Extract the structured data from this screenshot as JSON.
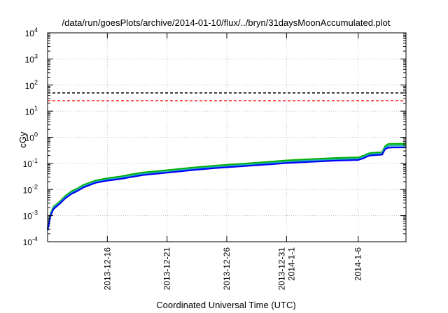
{
  "chart_data": {
    "type": "line",
    "title": "/data/run/goesPlots/archive/2014-01-10/flux/../bryn/31daysMoonAccumulated.plot",
    "xlabel": "Coordinated Universal Time (UTC)",
    "ylabel": "cGy",
    "yscale": "log",
    "ylim": [
      0.0001,
      10000
    ],
    "xlim": [
      "2013-12-11",
      "2014-01-10"
    ],
    "grid": true,
    "legend": "none",
    "y_ticks": [
      {
        "base": "10",
        "exp": "-4"
      },
      {
        "base": "10",
        "exp": "-3"
      },
      {
        "base": "10",
        "exp": "-2"
      },
      {
        "base": "10",
        "exp": "-1"
      },
      {
        "base": "10",
        "exp": "0"
      },
      {
        "base": "10",
        "exp": "1"
      },
      {
        "base": "10",
        "exp": "2"
      },
      {
        "base": "10",
        "exp": "3"
      },
      {
        "base": "10",
        "exp": "4"
      }
    ],
    "x_ticks": [
      {
        "date": "2013-12-16",
        "lines": [
          "2013-12-16"
        ]
      },
      {
        "date": "2013-12-21",
        "lines": [
          "2013-12-21"
        ]
      },
      {
        "date": "2013-12-26",
        "lines": [
          "2013-12-26"
        ]
      },
      {
        "date": "2013-12-31",
        "lines": [
          "2013-12-31",
          "2014-1-1"
        ]
      },
      {
        "date": "2014-01-06",
        "lines": [
          "2014-1-6"
        ]
      }
    ],
    "reference_lines": [
      {
        "y": 50,
        "color": "#000000",
        "style": "dashed"
      },
      {
        "y": 25,
        "color": "#ff0000",
        "style": "dashed"
      }
    ],
    "series": [
      {
        "color": "#00b000",
        "x": [
          "2013-12-11",
          "2013-12-11 06:00",
          "2013-12-11 12:00",
          "2013-12-12",
          "2013-12-12 12:00",
          "2013-12-13",
          "2013-12-13 12:00",
          "2013-12-14",
          "2013-12-15",
          "2013-12-16",
          "2013-12-17",
          "2013-12-18",
          "2013-12-19",
          "2013-12-21",
          "2013-12-23",
          "2013-12-25",
          "2013-12-27",
          "2013-12-29",
          "2013-12-31",
          "2014-01-02",
          "2014-01-04",
          "2014-01-06",
          "2014-01-06 12:00",
          "2014-01-06 18:00",
          "2014-01-07",
          "2014-01-07 12:00",
          "2014-01-08",
          "2014-01-08 06:00",
          "2014-01-08 12:00",
          "2014-01-09",
          "2014-01-10"
        ],
        "y": [
          0.00035,
          0.0012,
          0.0022,
          0.0034,
          0.0058,
          0.0085,
          0.011,
          0.015,
          0.022,
          0.027,
          0.031,
          0.038,
          0.045,
          0.055,
          0.068,
          0.082,
          0.095,
          0.11,
          0.13,
          0.145,
          0.16,
          0.17,
          0.2,
          0.23,
          0.25,
          0.26,
          0.27,
          0.45,
          0.55,
          0.56,
          0.56
        ]
      },
      {
        "color": "#20b0b0",
        "x": [
          "2013-12-11",
          "2013-12-11 06:00",
          "2013-12-11 12:00",
          "2013-12-12",
          "2013-12-12 12:00",
          "2013-12-13",
          "2013-12-13 12:00",
          "2013-12-14",
          "2013-12-15",
          "2013-12-16",
          "2013-12-17",
          "2013-12-18",
          "2013-12-19",
          "2013-12-21",
          "2013-12-23",
          "2013-12-25",
          "2013-12-27",
          "2013-12-29",
          "2013-12-31",
          "2014-01-02",
          "2014-01-04",
          "2014-01-06",
          "2014-01-06 12:00",
          "2014-01-06 18:00",
          "2014-01-07",
          "2014-01-07 12:00",
          "2014-01-08",
          "2014-01-08 06:00",
          "2014-01-08 12:00",
          "2014-01-09",
          "2014-01-10"
        ],
        "y": [
          0.00031,
          0.0011,
          0.002,
          0.0031,
          0.0052,
          0.0076,
          0.0098,
          0.0135,
          0.0198,
          0.024,
          0.028,
          0.034,
          0.04,
          0.049,
          0.061,
          0.073,
          0.085,
          0.098,
          0.115,
          0.129,
          0.142,
          0.151,
          0.178,
          0.205,
          0.222,
          0.232,
          0.24,
          0.4,
          0.47,
          0.48,
          0.48
        ]
      },
      {
        "color": "#0000ff",
        "x": [
          "2013-12-11",
          "2013-12-11 06:00",
          "2013-12-11 12:00",
          "2013-12-12",
          "2013-12-12 12:00",
          "2013-12-13",
          "2013-12-13 12:00",
          "2013-12-14",
          "2013-12-15",
          "2013-12-16",
          "2013-12-17",
          "2013-12-18",
          "2013-12-19",
          "2013-12-21",
          "2013-12-23",
          "2013-12-25",
          "2013-12-27",
          "2013-12-29",
          "2013-12-31",
          "2014-01-02",
          "2014-01-04",
          "2014-01-06",
          "2014-01-06 12:00",
          "2014-01-06 18:00",
          "2014-01-07",
          "2014-01-07 12:00",
          "2014-01-08",
          "2014-01-08 06:00",
          "2014-01-08 12:00",
          "2014-01-09",
          "2014-01-10"
        ],
        "y": [
          0.00028,
          0.001,
          0.0018,
          0.0028,
          0.0047,
          0.0068,
          0.0088,
          0.012,
          0.018,
          0.022,
          0.025,
          0.03,
          0.036,
          0.044,
          0.055,
          0.066,
          0.076,
          0.088,
          0.103,
          0.115,
          0.127,
          0.135,
          0.16,
          0.185,
          0.2,
          0.209,
          0.216,
          0.35,
          0.4,
          0.41,
          0.41
        ]
      }
    ]
  }
}
